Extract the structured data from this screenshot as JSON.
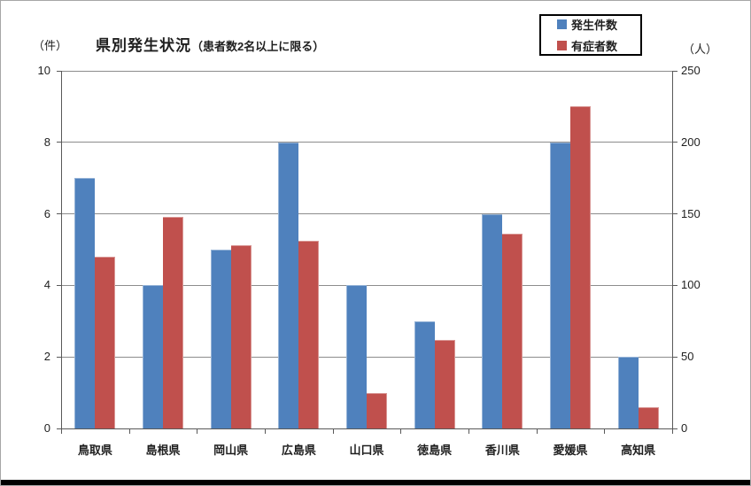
{
  "chart_data": {
    "type": "bar",
    "title": "県別発生状況",
    "title_note": "（患者数2名以上に限る）",
    "grid": true,
    "legend_position": "top-right",
    "left_axis": {
      "unit": "（件）",
      "min": 0,
      "max": 10,
      "ticks": [
        0,
        2,
        4,
        6,
        8,
        10
      ]
    },
    "right_axis": {
      "unit": "（人）",
      "min": 0,
      "max": 250,
      "ticks": [
        0,
        50,
        100,
        150,
        200,
        250
      ]
    },
    "categories": [
      "鳥取県",
      "島根県",
      "岡山県",
      "広島県",
      "山口県",
      "徳島県",
      "香川県",
      "愛媛県",
      "高知県"
    ],
    "series": [
      {
        "name": "発生件数",
        "axis": "left",
        "color": "#4F81BD",
        "border_color": "#95B3D7",
        "values": [
          7,
          4,
          5,
          8,
          4,
          3,
          6,
          8,
          2
        ]
      },
      {
        "name": "有症者数",
        "axis": "right",
        "color": "#C0504D",
        "border_color": "#D99694",
        "values": [
          120,
          148,
          128,
          131,
          25,
          62,
          136,
          225,
          15
        ]
      }
    ],
    "colors": {
      "gridline": "#8c8c8c",
      "axis": "#595959",
      "frame_border": "#a6a6a6",
      "bottom_bar": "#000000"
    }
  }
}
